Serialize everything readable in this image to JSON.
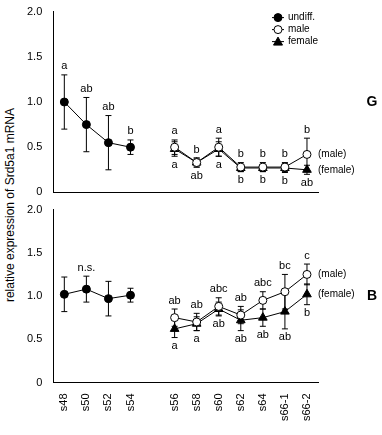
{
  "chart_data": [
    {
      "type": "line",
      "panel": "G",
      "y_label": "relative expression of Srd5a1 mRNA",
      "categories": [
        "s48",
        "s50",
        "s52",
        "s54",
        null,
        "s56",
        "s58",
        "s60",
        "s62",
        "s64",
        "s66-1",
        "s66-2"
      ],
      "series": [
        {
          "name": "undiff.",
          "color": "#000000",
          "marker": "circle",
          "values": [
            1.0,
            0.75,
            0.55,
            0.5,
            null,
            null,
            null,
            null,
            null,
            null,
            null,
            null
          ],
          "errors": [
            0.3,
            0.3,
            0.3,
            0.08,
            null,
            null,
            null,
            null,
            null,
            null,
            null,
            null
          ]
        },
        {
          "name": "male",
          "color": "#000000",
          "marker": "open circle",
          "values": [
            null,
            null,
            null,
            null,
            null,
            0.5,
            0.33,
            0.5,
            0.28,
            0.28,
            0.28,
            0.42
          ],
          "errors": [
            null,
            null,
            null,
            null,
            null,
            0.08,
            0.05,
            0.1,
            0.05,
            0.05,
            0.05,
            0.18
          ]
        },
        {
          "name": "female",
          "color": "#000000",
          "marker": "triangle",
          "values": [
            null,
            null,
            null,
            null,
            null,
            0.48,
            0.33,
            0.48,
            0.27,
            0.27,
            0.27,
            0.25
          ],
          "errors": [
            null,
            null,
            null,
            null,
            null,
            0.08,
            0.05,
            0.08,
            0.04,
            0.04,
            0.05,
            0.05
          ]
        }
      ],
      "ylim": [
        0,
        2
      ],
      "yticks": [
        0,
        0.5,
        {
          "value": 1,
          "label": "1.0"
        },
        1.5,
        {
          "value": 2,
          "label": "2.0"
        }
      ],
      "grid": false,
      "legend": "top right",
      "tick_labels": "y",
      "annotations": [
        {
          "category": "s48",
          "series": "undiff.",
          "text": "a",
          "position": "above"
        },
        {
          "category": "s50",
          "series": "undiff.",
          "text": "ab",
          "position": "above"
        },
        {
          "category": "s52",
          "series": "undiff.",
          "text": "ab",
          "position": "above"
        },
        {
          "category": "s54",
          "series": "undiff.",
          "text": "b",
          "position": "above"
        },
        {
          "category": "s56",
          "series": "male",
          "text": "a",
          "position": "above"
        },
        {
          "category": "s56",
          "series": "female",
          "text": "a",
          "position": "below"
        },
        {
          "category": "s58",
          "series": "male",
          "text": "b",
          "position": "above"
        },
        {
          "category": "s58",
          "series": "female",
          "text": "ab",
          "position": "below"
        },
        {
          "category": "s60",
          "series": "male",
          "text": "a",
          "position": "above"
        },
        {
          "category": "s60",
          "series": "female",
          "text": "a",
          "position": "below"
        },
        {
          "category": "s62",
          "series": "male",
          "text": "b",
          "position": "above"
        },
        {
          "category": "s62",
          "series": "female",
          "text": "b",
          "position": "below"
        },
        {
          "category": "s64",
          "series": "male",
          "text": "b",
          "position": "above"
        },
        {
          "category": "s64",
          "series": "female",
          "text": "b",
          "position": "below"
        },
        {
          "category": "s66-1",
          "series": "male",
          "text": "b",
          "position": "above"
        },
        {
          "category": "s66-1",
          "series": "female",
          "text": "b",
          "position": "below"
        },
        {
          "category": "s66-2",
          "series": "male",
          "text": "b",
          "position": "above"
        },
        {
          "category": "s66-2",
          "series": "female",
          "text": "ab",
          "position": "below"
        },
        {
          "category": "s66-2",
          "series": "male",
          "text": "(male)",
          "position": "right"
        },
        {
          "category": "s66-2",
          "series": "female",
          "text": "(female)",
          "position": "right"
        }
      ]
    },
    {
      "type": "line",
      "panel": "B",
      "categories": [
        "s48",
        "s50",
        "s52",
        "s54",
        null,
        "s56",
        "s58",
        "s60",
        "s62",
        "s64",
        "s66-1",
        "s66-2"
      ],
      "series": [
        {
          "name": "undiff.",
          "color": "#000000",
          "marker": "circle",
          "values": [
            1.02,
            1.08,
            0.97,
            1.01,
            null,
            null,
            null,
            null,
            null,
            null,
            null,
            null
          ],
          "errors": [
            0.2,
            0.15,
            0.2,
            0.08,
            null,
            null,
            null,
            null,
            null,
            null,
            null,
            null
          ]
        },
        {
          "name": "male",
          "color": "#000000",
          "marker": "open circle",
          "values": [
            null,
            null,
            null,
            null,
            null,
            0.75,
            0.7,
            0.88,
            0.78,
            0.95,
            1.05,
            1.25
          ],
          "errors": [
            null,
            null,
            null,
            null,
            null,
            0.1,
            0.1,
            0.1,
            0.1,
            0.1,
            0.2,
            0.12
          ]
        },
        {
          "name": "female",
          "color": "#000000",
          "marker": "triangle",
          "values": [
            null,
            null,
            null,
            null,
            null,
            0.62,
            0.68,
            0.85,
            0.72,
            0.75,
            0.82,
            1.02
          ],
          "errors": [
            null,
            null,
            null,
            null,
            null,
            0.1,
            0.08,
            0.08,
            0.12,
            0.1,
            0.2,
            0.12
          ]
        }
      ],
      "ylim": [
        0,
        2
      ],
      "yticks": [
        0,
        0.5,
        {
          "value": 1,
          "label": "1.0"
        },
        1.5,
        {
          "value": 2,
          "label": "2.0"
        }
      ],
      "grid": false,
      "annotations": [
        {
          "category": "s50",
          "series": "undiff.",
          "text": "n.s.",
          "position": "above"
        },
        {
          "category": "s56",
          "series": "male",
          "text": "ab",
          "position": "above"
        },
        {
          "category": "s56",
          "series": "female",
          "text": "a",
          "position": "below"
        },
        {
          "category": "s58",
          "series": "male",
          "text": "ab",
          "position": "above"
        },
        {
          "category": "s58",
          "series": "female",
          "text": "a",
          "position": "below"
        },
        {
          "category": "s60",
          "series": "male",
          "text": "abc",
          "position": "above"
        },
        {
          "category": "s60",
          "series": "female",
          "text": "ab",
          "position": "below"
        },
        {
          "category": "s62",
          "series": "male",
          "text": "ab",
          "position": "above"
        },
        {
          "category": "s62",
          "series": "female",
          "text": "ab",
          "position": "below"
        },
        {
          "category": "s64",
          "series": "male",
          "text": "abc",
          "position": "above"
        },
        {
          "category": "s64",
          "series": "female",
          "text": "ab",
          "position": "below"
        },
        {
          "category": "s66-1",
          "series": "male",
          "text": "bc",
          "position": "above"
        },
        {
          "category": "s66-1",
          "series": "female",
          "text": "ab",
          "position": "below"
        },
        {
          "category": "s66-2",
          "series": "male",
          "text": "c",
          "position": "above"
        },
        {
          "category": "s66-2",
          "series": "female",
          "text": "b",
          "position": "below"
        },
        {
          "category": "s66-2",
          "series": "male",
          "text": "(male)",
          "position": "right"
        },
        {
          "category": "s66-2",
          "series": "female",
          "text": "(female)",
          "position": "right"
        }
      ]
    }
  ]
}
